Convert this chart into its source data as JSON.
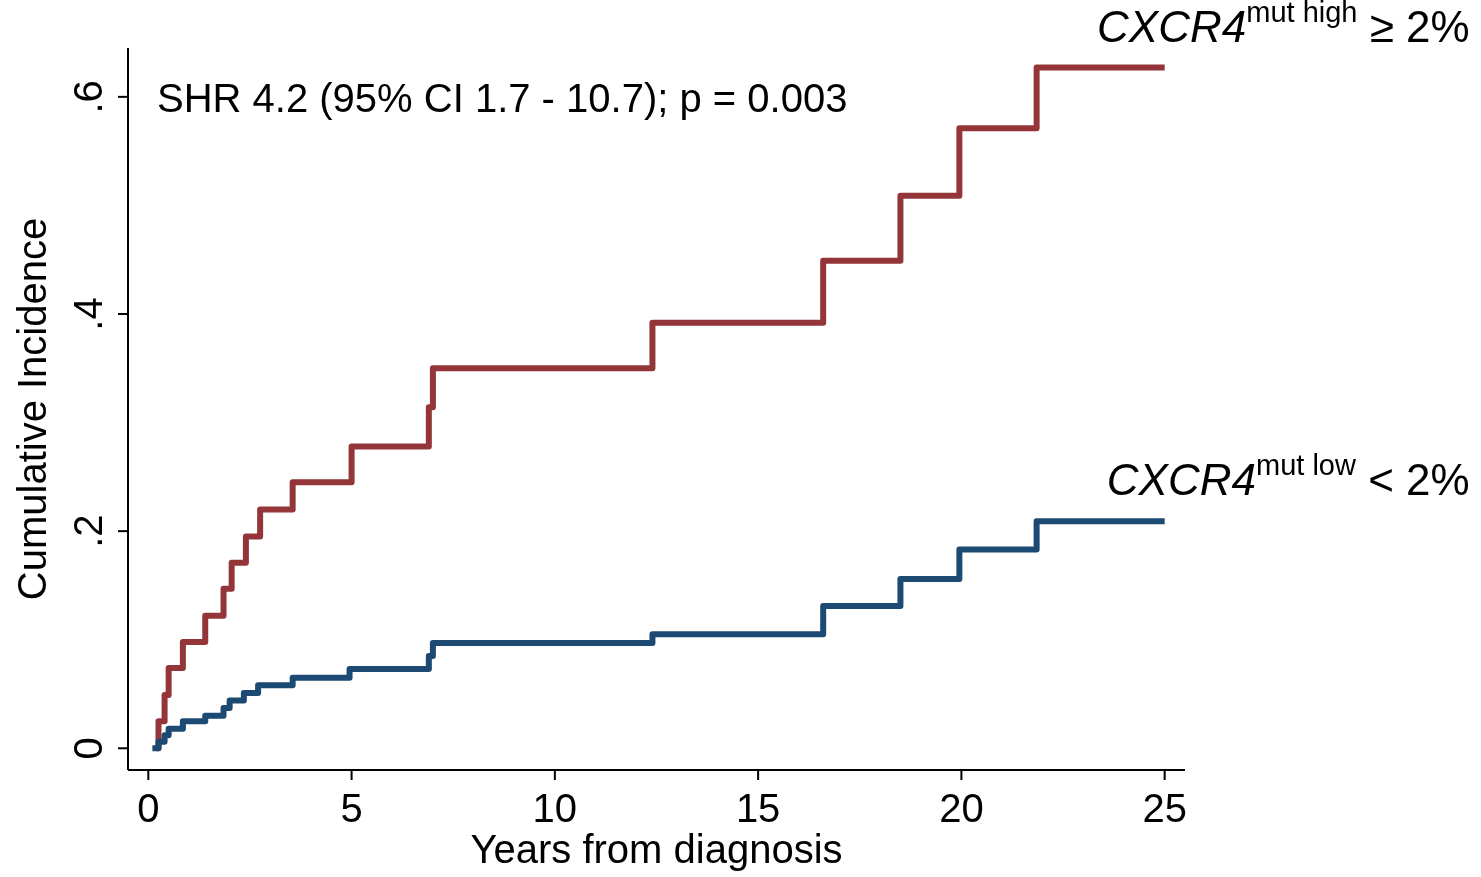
{
  "chart_data": {
    "type": "step",
    "xlabel": "Years from diagnosis",
    "ylabel": "Cumulative Incidence",
    "xlim": [
      -0.5,
      25.5
    ],
    "ylim": [
      -0.02,
      0.645
    ],
    "xticks": [
      0,
      5,
      10,
      15,
      20,
      25
    ],
    "yticks": [
      {
        "value": 0,
        "label": "0"
      },
      {
        "value": 0.2,
        "label": ".2"
      },
      {
        "value": 0.4,
        "label": ".4"
      },
      {
        "value": 0.6,
        "label": ".6"
      }
    ],
    "grid": false,
    "legend": false,
    "line_style": "solid",
    "marker": "none",
    "annotations": [
      "SHR 4.2 (95% CI 1.7 - 10.7); p = 0.003"
    ],
    "series": [
      {
        "name": "CXCR4$^{mut high}$ ≥ 2%",
        "color": "#943639",
        "x": [
          0.2,
          0.25,
          0.4,
          0.5,
          0.85,
          1.4,
          1.85,
          2.05,
          2.4,
          2.75,
          3.55,
          5.0,
          6.9,
          7.0,
          12.4,
          16.6,
          18.5,
          19.95,
          21.85,
          25
        ],
        "values": [
          0,
          0.025,
          0.049,
          0.074,
          0.098,
          0.122,
          0.147,
          0.171,
          0.195,
          0.22,
          0.245,
          0.278,
          0.314,
          0.35,
          0.392,
          0.449,
          0.509,
          0.571,
          0.627,
          0.627
        ]
      },
      {
        "name": "CXCR4$^{mut low}$ < 2%",
        "color": "#1c4a72",
        "x": [
          0.1,
          0.25,
          0.4,
          0.5,
          0.85,
          1.4,
          1.85,
          2.0,
          2.35,
          2.7,
          3.55,
          4.95,
          6.9,
          7.0,
          12.4,
          16.6,
          18.5,
          19.95,
          21.85,
          25
        ],
        "values": [
          0,
          0.006,
          0.012,
          0.018,
          0.025,
          0.03,
          0.037,
          0.044,
          0.051,
          0.058,
          0.065,
          0.073,
          0.085,
          0.097,
          0.105,
          0.131,
          0.156,
          0.183,
          0.209,
          0.209
        ]
      }
    ]
  }
}
